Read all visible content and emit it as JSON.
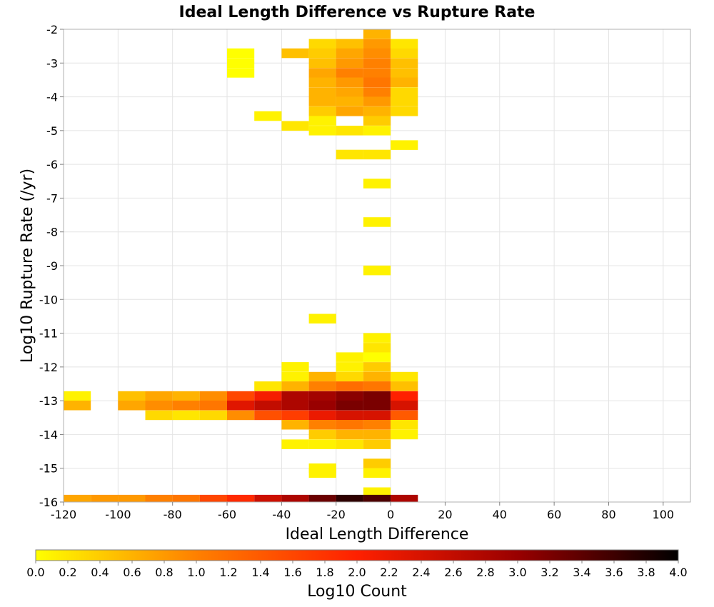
{
  "chart_data": {
    "type": "heatmap",
    "title": "Ideal Length Difference vs Rupture Rate",
    "xlabel": "Ideal Length Difference",
    "ylabel": "Log10 Rupture Rate (/yr)",
    "xlim": [
      -120,
      110
    ],
    "ylim": [
      -16,
      -2
    ],
    "x_ticks": [
      "-120",
      "-100",
      "-80",
      "-60",
      "-40",
      "-20",
      "0",
      "20",
      "40",
      "60",
      "80",
      "100"
    ],
    "y_ticks": [
      "-2",
      "-3",
      "-4",
      "-5",
      "-6",
      "-7",
      "-8",
      "-9",
      "-10",
      "-11",
      "-12",
      "-13",
      "-14",
      "-15",
      "-16"
    ],
    "grid": true,
    "bin_width_x": 10,
    "bin_height_y": 0.2857,
    "colorbar": {
      "label": "Log10 Count",
      "min": 0.0,
      "max": 4.0,
      "ticks": [
        "0.0",
        "0.2",
        "0.4",
        "0.6",
        "0.8",
        "1.0",
        "1.2",
        "1.4",
        "1.6",
        "1.8",
        "2.0",
        "2.2",
        "2.4",
        "2.6",
        "2.8",
        "3.0",
        "3.2",
        "3.4",
        "3.6",
        "3.8",
        "4.0"
      ],
      "colors": [
        "#ffff00",
        "#ff8000",
        "#ff2000",
        "#990000",
        "#000000"
      ]
    },
    "cells": [
      {
        "x": -5,
        "y": -2.14,
        "v": 0.6
      },
      {
        "x": -25,
        "y": -2.43,
        "v": 0.3
      },
      {
        "x": -15,
        "y": -2.43,
        "v": 0.5
      },
      {
        "x": -5,
        "y": -2.43,
        "v": 0.8
      },
      {
        "x": 5,
        "y": -2.43,
        "v": 0.2
      },
      {
        "x": -55,
        "y": -2.71,
        "v": 0.0
      },
      {
        "x": -35,
        "y": -2.71,
        "v": 0.5
      },
      {
        "x": -25,
        "y": -2.71,
        "v": 0.4
      },
      {
        "x": -15,
        "y": -2.71,
        "v": 0.7
      },
      {
        "x": -5,
        "y": -2.71,
        "v": 0.9
      },
      {
        "x": 5,
        "y": -2.71,
        "v": 0.3
      },
      {
        "x": -55,
        "y": -3.0,
        "v": 0.0
      },
      {
        "x": -25,
        "y": -3.0,
        "v": 0.5
      },
      {
        "x": -15,
        "y": -3.0,
        "v": 0.8
      },
      {
        "x": -5,
        "y": -3.0,
        "v": 1.0
      },
      {
        "x": 5,
        "y": -3.0,
        "v": 0.5
      },
      {
        "x": -55,
        "y": -3.29,
        "v": 0.0
      },
      {
        "x": -25,
        "y": -3.29,
        "v": 0.7
      },
      {
        "x": -15,
        "y": -3.29,
        "v": 1.0
      },
      {
        "x": -5,
        "y": -3.29,
        "v": 1.0
      },
      {
        "x": 5,
        "y": -3.29,
        "v": 0.5
      },
      {
        "x": -25,
        "y": -3.57,
        "v": 0.6
      },
      {
        "x": -15,
        "y": -3.57,
        "v": 0.8
      },
      {
        "x": -5,
        "y": -3.57,
        "v": 1.1
      },
      {
        "x": 5,
        "y": -3.57,
        "v": 0.6
      },
      {
        "x": -25,
        "y": -3.86,
        "v": 0.6
      },
      {
        "x": -15,
        "y": -3.86,
        "v": 0.7
      },
      {
        "x": -5,
        "y": -3.86,
        "v": 1.0
      },
      {
        "x": 5,
        "y": -3.86,
        "v": 0.3
      },
      {
        "x": -25,
        "y": -4.14,
        "v": 0.6
      },
      {
        "x": -15,
        "y": -4.14,
        "v": 0.6
      },
      {
        "x": -5,
        "y": -4.14,
        "v": 0.8
      },
      {
        "x": 5,
        "y": -4.14,
        "v": 0.3
      },
      {
        "x": -25,
        "y": -4.43,
        "v": 0.4
      },
      {
        "x": -15,
        "y": -4.43,
        "v": 0.7
      },
      {
        "x": -5,
        "y": -4.43,
        "v": 0.6
      },
      {
        "x": 5,
        "y": -4.43,
        "v": 0.3
      },
      {
        "x": -45,
        "y": -4.57,
        "v": 0.1
      },
      {
        "x": -25,
        "y": -4.71,
        "v": 0.1
      },
      {
        "x": -5,
        "y": -4.71,
        "v": 0.4
      },
      {
        "x": -35,
        "y": -4.86,
        "v": 0.2
      },
      {
        "x": -25,
        "y": -5.0,
        "v": 0.1
      },
      {
        "x": -15,
        "y": -5.0,
        "v": 0.2
      },
      {
        "x": -5,
        "y": -5.0,
        "v": 0.1
      },
      {
        "x": 5,
        "y": -5.43,
        "v": 0.1
      },
      {
        "x": -15,
        "y": -5.71,
        "v": 0.2
      },
      {
        "x": -5,
        "y": -5.71,
        "v": 0.2
      },
      {
        "x": -5,
        "y": -6.57,
        "v": 0.1
      },
      {
        "x": -5,
        "y": -7.71,
        "v": 0.1
      },
      {
        "x": -5,
        "y": -9.14,
        "v": 0.1
      },
      {
        "x": -25,
        "y": -10.57,
        "v": 0.1
      },
      {
        "x": -5,
        "y": -11.14,
        "v": 0.1
      },
      {
        "x": -5,
        "y": -11.43,
        "v": 0.2
      },
      {
        "x": -15,
        "y": -11.71,
        "v": 0.1
      },
      {
        "x": -5,
        "y": -11.71,
        "v": 0.0
      },
      {
        "x": -35,
        "y": -12.0,
        "v": 0.1
      },
      {
        "x": -15,
        "y": -12.0,
        "v": 0.1
      },
      {
        "x": -5,
        "y": -12.0,
        "v": 0.4
      },
      {
        "x": -35,
        "y": -12.29,
        "v": 0.1
      },
      {
        "x": -25,
        "y": -12.29,
        "v": 0.6
      },
      {
        "x": -15,
        "y": -12.29,
        "v": 0.3
      },
      {
        "x": -5,
        "y": -12.29,
        "v": 0.6
      },
      {
        "x": 5,
        "y": -12.29,
        "v": 0.2
      },
      {
        "x": -45,
        "y": -12.57,
        "v": 0.2
      },
      {
        "x": -35,
        "y": -12.57,
        "v": 0.6
      },
      {
        "x": -25,
        "y": -12.57,
        "v": 1.0
      },
      {
        "x": -15,
        "y": -12.57,
        "v": 1.2
      },
      {
        "x": -5,
        "y": -12.57,
        "v": 1.1
      },
      {
        "x": 5,
        "y": -12.57,
        "v": 0.5
      },
      {
        "x": -115,
        "y": -12.86,
        "v": 0.1
      },
      {
        "x": -95,
        "y": -12.86,
        "v": 0.5
      },
      {
        "x": -85,
        "y": -12.86,
        "v": 0.7
      },
      {
        "x": -75,
        "y": -12.86,
        "v": 0.6
      },
      {
        "x": -65,
        "y": -12.86,
        "v": 0.9
      },
      {
        "x": -55,
        "y": -12.86,
        "v": 1.6
      },
      {
        "x": -45,
        "y": -12.86,
        "v": 2.1
      },
      {
        "x": -35,
        "y": -12.86,
        "v": 2.8
      },
      {
        "x": -25,
        "y": -12.86,
        "v": 2.9
      },
      {
        "x": -15,
        "y": -12.86,
        "v": 3.1
      },
      {
        "x": -5,
        "y": -12.86,
        "v": 3.2
      },
      {
        "x": 5,
        "y": -12.86,
        "v": 2.0
      },
      {
        "x": -115,
        "y": -13.14,
        "v": 0.6
      },
      {
        "x": -95,
        "y": -13.14,
        "v": 0.7
      },
      {
        "x": -85,
        "y": -13.14,
        "v": 0.9
      },
      {
        "x": -75,
        "y": -13.14,
        "v": 1.0
      },
      {
        "x": -65,
        "y": -13.14,
        "v": 1.1
      },
      {
        "x": -55,
        "y": -13.14,
        "v": 2.3
      },
      {
        "x": -45,
        "y": -13.14,
        "v": 2.6
      },
      {
        "x": -35,
        "y": -13.14,
        "v": 2.8
      },
      {
        "x": -25,
        "y": -13.14,
        "v": 3.0
      },
      {
        "x": -15,
        "y": -13.14,
        "v": 3.2
      },
      {
        "x": -5,
        "y": -13.14,
        "v": 3.2
      },
      {
        "x": 5,
        "y": -13.14,
        "v": 2.4
      },
      {
        "x": -85,
        "y": -13.43,
        "v": 0.3
      },
      {
        "x": -75,
        "y": -13.43,
        "v": 0.2
      },
      {
        "x": -65,
        "y": -13.43,
        "v": 0.3
      },
      {
        "x": -55,
        "y": -13.43,
        "v": 0.9
      },
      {
        "x": -45,
        "y": -13.43,
        "v": 1.5
      },
      {
        "x": -35,
        "y": -13.43,
        "v": 1.7
      },
      {
        "x": -25,
        "y": -13.43,
        "v": 2.2
      },
      {
        "x": -15,
        "y": -13.43,
        "v": 2.4
      },
      {
        "x": -5,
        "y": -13.43,
        "v": 2.4
      },
      {
        "x": 5,
        "y": -13.43,
        "v": 1.4
      },
      {
        "x": -35,
        "y": -13.71,
        "v": 0.6
      },
      {
        "x": -25,
        "y": -13.71,
        "v": 1.0
      },
      {
        "x": -15,
        "y": -13.71,
        "v": 1.1
      },
      {
        "x": -5,
        "y": -13.71,
        "v": 1.0
      },
      {
        "x": 5,
        "y": -13.71,
        "v": 0.2
      },
      {
        "x": -25,
        "y": -14.0,
        "v": 0.4
      },
      {
        "x": -15,
        "y": -14.0,
        "v": 0.6
      },
      {
        "x": -5,
        "y": -14.0,
        "v": 0.6
      },
      {
        "x": 5,
        "y": -14.0,
        "v": 0.1
      },
      {
        "x": -35,
        "y": -14.29,
        "v": 0.1
      },
      {
        "x": -25,
        "y": -14.29,
        "v": 0.1
      },
      {
        "x": -15,
        "y": -14.29,
        "v": 0.2
      },
      {
        "x": -5,
        "y": -14.29,
        "v": 0.4
      },
      {
        "x": -5,
        "y": -14.86,
        "v": 0.4
      },
      {
        "x": -25,
        "y": -15.0,
        "v": 0.1
      },
      {
        "x": -25,
        "y": -15.14,
        "v": 0.1
      },
      {
        "x": -5,
        "y": -15.14,
        "v": 0.1
      },
      {
        "x": -5,
        "y": -15.71,
        "v": 0.1
      },
      {
        "x": -115,
        "y": -15.93,
        "v": 0.7
      },
      {
        "x": -105,
        "y": -15.93,
        "v": 0.8
      },
      {
        "x": -95,
        "y": -15.93,
        "v": 0.8
      },
      {
        "x": -85,
        "y": -15.93,
        "v": 1.0
      },
      {
        "x": -75,
        "y": -15.93,
        "v": 1.1
      },
      {
        "x": -65,
        "y": -15.93,
        "v": 1.6
      },
      {
        "x": -55,
        "y": -15.93,
        "v": 1.9
      },
      {
        "x": -45,
        "y": -15.93,
        "v": 2.5
      },
      {
        "x": -35,
        "y": -15.93,
        "v": 2.8
      },
      {
        "x": -25,
        "y": -15.93,
        "v": 3.3
      },
      {
        "x": -15,
        "y": -15.93,
        "v": 3.7
      },
      {
        "x": -5,
        "y": -15.93,
        "v": 3.5
      },
      {
        "x": 5,
        "y": -15.93,
        "v": 2.8
      }
    ]
  }
}
